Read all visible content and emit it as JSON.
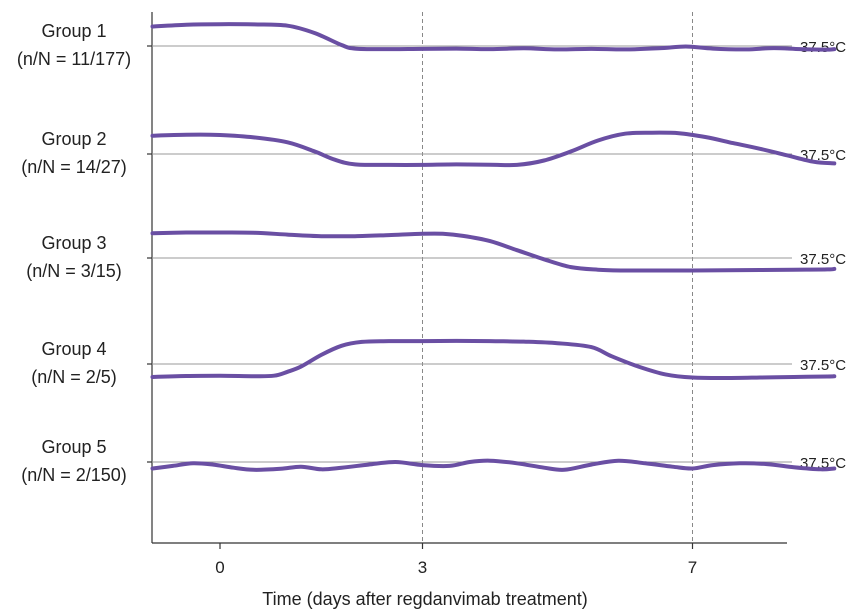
{
  "chart_data": {
    "type": "line",
    "xlabel": "Time (days after regdanvimab treatment)",
    "x_ticks": [
      0,
      3,
      7
    ],
    "x_range": [
      -1.05,
      9.1
    ],
    "dashed_lines_at": [
      3,
      7
    ],
    "reference_label": "37.5°C",
    "line_color": "#6a4fa3",
    "grid": false,
    "groups": [
      {
        "name": "Group 1",
        "n_label": "(n/N = 11/177)",
        "reference_label": "37.5°C",
        "curve": [
          [
            -1.0,
            0.75
          ],
          [
            -0.5,
            0.82
          ],
          [
            0.0,
            0.84
          ],
          [
            0.5,
            0.83
          ],
          [
            1.0,
            0.78
          ],
          [
            1.4,
            0.5
          ],
          [
            1.8,
            0.04
          ],
          [
            2.0,
            -0.1
          ],
          [
            2.5,
            -0.12
          ],
          [
            3.0,
            -0.11
          ],
          [
            3.5,
            -0.1
          ],
          [
            4.0,
            -0.12
          ],
          [
            4.5,
            -0.09
          ],
          [
            5.0,
            -0.13
          ],
          [
            5.5,
            -0.11
          ],
          [
            6.0,
            -0.13
          ],
          [
            6.5,
            -0.09
          ],
          [
            6.9,
            -0.02
          ],
          [
            7.3,
            -0.1
          ],
          [
            7.8,
            -0.13
          ],
          [
            8.2,
            -0.08
          ],
          [
            8.6,
            -0.12
          ],
          [
            9.0,
            -0.14
          ],
          [
            9.1,
            -0.12
          ]
        ]
      },
      {
        "name": "Group 2",
        "n_label": "(n/N = 14/27)",
        "reference_label": "37.5°C",
        "curve": [
          [
            -1.0,
            0.7
          ],
          [
            -0.5,
            0.74
          ],
          [
            0.0,
            0.73
          ],
          [
            0.5,
            0.64
          ],
          [
            1.0,
            0.45
          ],
          [
            1.4,
            0.1
          ],
          [
            1.7,
            -0.22
          ],
          [
            2.0,
            -0.4
          ],
          [
            2.5,
            -0.42
          ],
          [
            3.0,
            -0.42
          ],
          [
            3.5,
            -0.4
          ],
          [
            4.0,
            -0.41
          ],
          [
            4.4,
            -0.42
          ],
          [
            4.8,
            -0.25
          ],
          [
            5.2,
            0.1
          ],
          [
            5.6,
            0.52
          ],
          [
            6.0,
            0.78
          ],
          [
            6.4,
            0.82
          ],
          [
            6.8,
            0.8
          ],
          [
            7.2,
            0.65
          ],
          [
            7.6,
            0.42
          ],
          [
            8.0,
            0.2
          ],
          [
            8.4,
            -0.05
          ],
          [
            8.8,
            -0.3
          ],
          [
            9.1,
            -0.36
          ]
        ]
      },
      {
        "name": "Group 3",
        "n_label": "(n/N = 3/15)",
        "reference_label": "37.5°C",
        "curve": [
          [
            -1.0,
            0.95
          ],
          [
            -0.5,
            0.98
          ],
          [
            0.0,
            0.98
          ],
          [
            0.5,
            0.97
          ],
          [
            1.0,
            0.9
          ],
          [
            1.5,
            0.84
          ],
          [
            2.0,
            0.84
          ],
          [
            2.5,
            0.88
          ],
          [
            3.0,
            0.93
          ],
          [
            3.3,
            0.93
          ],
          [
            3.6,
            0.85
          ],
          [
            4.0,
            0.65
          ],
          [
            4.4,
            0.3
          ],
          [
            4.8,
            -0.05
          ],
          [
            5.2,
            -0.35
          ],
          [
            5.6,
            -0.45
          ],
          [
            6.0,
            -0.48
          ],
          [
            6.5,
            -0.48
          ],
          [
            7.0,
            -0.48
          ],
          [
            7.5,
            -0.47
          ],
          [
            8.0,
            -0.46
          ],
          [
            8.5,
            -0.45
          ],
          [
            9.0,
            -0.44
          ],
          [
            9.1,
            -0.42
          ]
        ]
      },
      {
        "name": "Group 4",
        "n_label": "(n/N = 2/5)",
        "reference_label": "37.5°C",
        "curve": [
          [
            -1.0,
            -0.5
          ],
          [
            -0.5,
            -0.46
          ],
          [
            0.0,
            -0.45
          ],
          [
            0.5,
            -0.47
          ],
          [
            0.8,
            -0.45
          ],
          [
            1.0,
            -0.3
          ],
          [
            1.2,
            -0.1
          ],
          [
            1.5,
            0.35
          ],
          [
            1.8,
            0.7
          ],
          [
            2.1,
            0.85
          ],
          [
            2.5,
            0.88
          ],
          [
            3.0,
            0.88
          ],
          [
            3.5,
            0.89
          ],
          [
            4.0,
            0.88
          ],
          [
            4.5,
            0.86
          ],
          [
            5.0,
            0.8
          ],
          [
            5.5,
            0.65
          ],
          [
            5.8,
            0.3
          ],
          [
            6.2,
            -0.1
          ],
          [
            6.6,
            -0.4
          ],
          [
            7.0,
            -0.52
          ],
          [
            7.5,
            -0.54
          ],
          [
            8.0,
            -0.52
          ],
          [
            8.5,
            -0.5
          ],
          [
            9.0,
            -0.48
          ],
          [
            9.1,
            -0.47
          ]
        ]
      },
      {
        "name": "Group 5",
        "n_label": "(n/N = 2/150)",
        "reference_label": "37.5°C",
        "curve": [
          [
            -1.0,
            -0.25
          ],
          [
            -0.7,
            -0.15
          ],
          [
            -0.4,
            -0.05
          ],
          [
            -0.1,
            -0.1
          ],
          [
            0.2,
            -0.22
          ],
          [
            0.5,
            -0.3
          ],
          [
            0.9,
            -0.26
          ],
          [
            1.2,
            -0.18
          ],
          [
            1.5,
            -0.28
          ],
          [
            1.8,
            -0.22
          ],
          [
            2.2,
            -0.1
          ],
          [
            2.6,
            0.0
          ],
          [
            3.0,
            -0.12
          ],
          [
            3.4,
            -0.15
          ],
          [
            3.7,
            0.0
          ],
          [
            4.0,
            0.05
          ],
          [
            4.4,
            -0.05
          ],
          [
            4.8,
            -0.22
          ],
          [
            5.1,
            -0.3
          ],
          [
            5.5,
            -0.1
          ],
          [
            5.9,
            0.05
          ],
          [
            6.3,
            -0.05
          ],
          [
            6.7,
            -0.18
          ],
          [
            7.0,
            -0.25
          ],
          [
            7.3,
            -0.12
          ],
          [
            7.7,
            -0.05
          ],
          [
            8.1,
            -0.08
          ],
          [
            8.5,
            -0.2
          ],
          [
            8.9,
            -0.28
          ],
          [
            9.1,
            -0.25
          ]
        ]
      }
    ]
  }
}
